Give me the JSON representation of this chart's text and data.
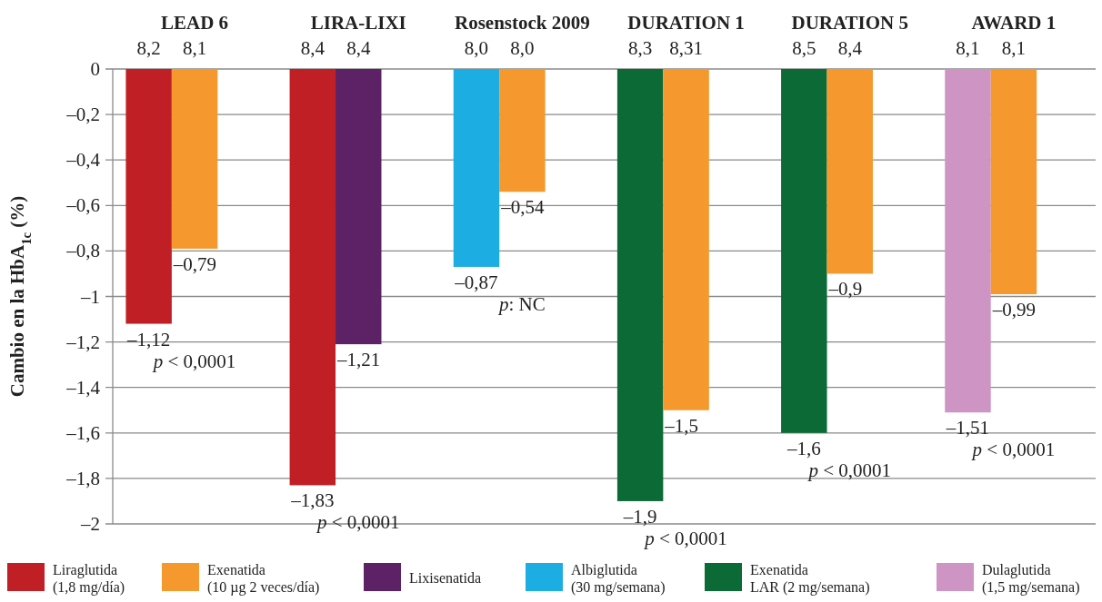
{
  "chart_data": {
    "type": "bar",
    "ylabel": "Cambio en la HbA$_{1c}$ (%)",
    "categories": [
      "LEAD 6",
      "LIRA-LIXI",
      "Rosenstock 2009",
      "DURATION 1",
      "DURATION 5",
      "AWARD 1"
    ],
    "series": [
      {
        "name": "Liraglutida\n(1,8 mg/día)",
        "color": "#c01f25",
        "values": [
          -1.12,
          -1.83,
          null,
          null,
          null,
          null
        ],
        "value_labels": [
          "–1,12",
          "–1,83",
          null,
          null,
          null,
          null
        ]
      },
      {
        "name": "Exenatida\n(10 µg 2 veces/día)",
        "color": "#f5982d",
        "values": [
          -0.79,
          null,
          -0.54,
          -1.5,
          -0.9,
          -0.99
        ],
        "value_labels": [
          "–0,79",
          null,
          "–0,54",
          "–1,5",
          "–0,9",
          "–0,99"
        ]
      },
      {
        "name": "Lixisenatida",
        "color": "#5d2266",
        "values": [
          null,
          -1.21,
          null,
          null,
          null,
          null
        ],
        "value_labels": [
          null,
          "–1,21",
          null,
          null,
          null,
          null
        ]
      },
      {
        "name": "Albiglutida\n(30 mg/semana)",
        "color": "#1cade3",
        "values": [
          null,
          null,
          -0.87,
          null,
          null,
          null
        ],
        "value_labels": [
          null,
          null,
          "–0,87",
          null,
          null,
          null
        ]
      },
      {
        "name": "Exenatida\nLAR (2 mg/semana)",
        "color": "#0b6a35",
        "values": [
          null,
          null,
          null,
          -1.9,
          -1.6,
          null
        ],
        "value_labels": [
          null,
          null,
          null,
          "–1,9",
          "–1,6",
          null
        ]
      },
      {
        "name": "Dulaglutida\n(1,5 mg/semana)",
        "color": "#cd94c4",
        "values": [
          null,
          null,
          null,
          null,
          null,
          -1.51
        ],
        "value_labels": [
          null,
          null,
          null,
          null,
          null,
          "–1,51"
        ]
      }
    ],
    "ylim": [
      -2,
      0
    ],
    "yticks": [
      0,
      {
        "value": -0.2,
        "label": "–0,2"
      },
      {
        "value": -0.4,
        "label": "–0,4"
      },
      {
        "value": -0.6,
        "label": "–0,6"
      },
      {
        "value": -0.8,
        "label": "–0,8"
      },
      {
        "value": -1,
        "label": "–1"
      },
      {
        "value": -1.2,
        "label": "–1,2"
      },
      {
        "value": -1.4,
        "label": "–1,4"
      },
      {
        "value": -1.6,
        "label": "–1,6"
      },
      {
        "value": -1.8,
        "label": "–1,8"
      },
      {
        "value": -2,
        "label": "–2"
      }
    ],
    "grid": "y",
    "legend": "bottom",
    "annotations": [
      {
        "text": "8,2",
        "x": "LEAD 6",
        "y": 0
      },
      {
        "text": "8,1",
        "x": "LEAD 6",
        "y": 0
      },
      {
        "text": "8,4",
        "x": "LIRA-LIXI",
        "y": 0
      },
      {
        "text": "8,4",
        "x": "LIRA-LIXI",
        "y": 0
      },
      {
        "text": "8,0",
        "x": "Rosenstock 2009",
        "y": 0
      },
      {
        "text": "8,0",
        "x": "Rosenstock 2009",
        "y": 0
      },
      {
        "text": "8,3",
        "x": "DURATION 1",
        "y": 0
      },
      {
        "text": "8,31",
        "x": "DURATION 1",
        "y": 0
      },
      {
        "text": "8,5",
        "x": "DURATION 5",
        "y": 0
      },
      {
        "text": "8,4",
        "x": "DURATION 5",
        "y": 0
      },
      {
        "text": "8,1",
        "x": "AWARD 1",
        "y": 0
      },
      {
        "text": "8,1",
        "x": "AWARD 1",
        "y": 0
      },
      "p < 0,0001",
      "p < 0,0001",
      "p: NC",
      "p < 0,0001",
      "p < 0,0001",
      "p < 0,0001"
    ]
  }
}
